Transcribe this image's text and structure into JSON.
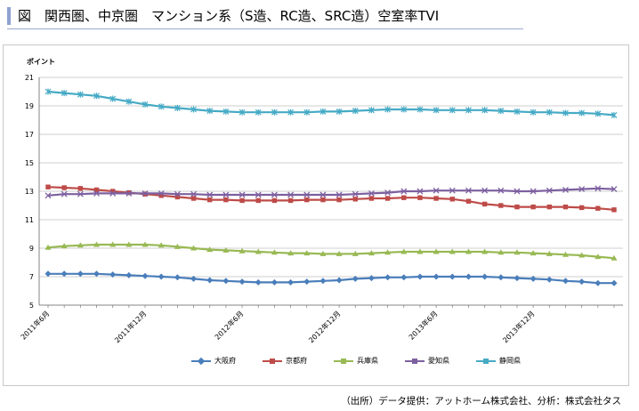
{
  "title": "図　関西圏、中京圏　マンション系（S造、RC造、SRC造）空室率TVI",
  "source": "（出所）データ提供：アットホーム株式会社、分析：株式会社タス",
  "chart_data": {
    "type": "line",
    "ylabel": "ポイント",
    "ylim": [
      5,
      21
    ],
    "yticks": [
      5,
      7,
      9,
      11,
      13,
      15,
      17,
      19,
      21
    ],
    "x": [
      "2011年6月",
      "2011年7月",
      "2011年8月",
      "2011年9月",
      "2011年10月",
      "2011年11月",
      "2011年12月",
      "2012年1月",
      "2012年2月",
      "2012年3月",
      "2012年4月",
      "2012年5月",
      "2012年6月",
      "2012年7月",
      "2012年8月",
      "2012年9月",
      "2012年10月",
      "2012年11月",
      "2012年12月",
      "2013年1月",
      "2013年2月",
      "2013年3月",
      "2013年4月",
      "2013年5月",
      "2013年6月",
      "2013年7月",
      "2013年8月",
      "2013年9月",
      "2013年10月",
      "2013年11月",
      "2013年12月",
      "2014年1月",
      "2014年2月",
      "2014年3月",
      "2014年4月",
      "2014年5月"
    ],
    "xtick_labels": [
      "2011年6月",
      "2011年12月",
      "2012年6月",
      "2012年12月",
      "2013年6月",
      "2013年12月"
    ],
    "series": [
      {
        "name": "大阪府",
        "color": "#4a7ebb",
        "marker": "diamond",
        "values": [
          7.2,
          7.2,
          7.2,
          7.2,
          7.15,
          7.1,
          7.05,
          7.0,
          6.95,
          6.85,
          6.75,
          6.7,
          6.65,
          6.6,
          6.6,
          6.6,
          6.65,
          6.7,
          6.75,
          6.85,
          6.9,
          6.95,
          6.95,
          7.0,
          7.0,
          7.0,
          7.0,
          7.0,
          6.95,
          6.9,
          6.85,
          6.8,
          6.7,
          6.65,
          6.55,
          6.55
        ]
      },
      {
        "name": "京都府",
        "color": "#be4b48",
        "marker": "square",
        "values": [
          13.3,
          13.25,
          13.2,
          13.1,
          13.0,
          12.9,
          12.8,
          12.7,
          12.6,
          12.5,
          12.4,
          12.4,
          12.35,
          12.35,
          12.35,
          12.35,
          12.4,
          12.4,
          12.4,
          12.45,
          12.5,
          12.5,
          12.55,
          12.55,
          12.5,
          12.45,
          12.3,
          12.1,
          12.0,
          11.9,
          11.9,
          11.9,
          11.9,
          11.85,
          11.8,
          11.7
        ]
      },
      {
        "name": "兵庫県",
        "color": "#98b954",
        "marker": "triangle",
        "values": [
          9.05,
          9.15,
          9.2,
          9.25,
          9.25,
          9.25,
          9.25,
          9.2,
          9.1,
          9.0,
          8.9,
          8.85,
          8.8,
          8.75,
          8.7,
          8.65,
          8.65,
          8.6,
          8.6,
          8.6,
          8.65,
          8.7,
          8.75,
          8.75,
          8.75,
          8.75,
          8.75,
          8.75,
          8.7,
          8.7,
          8.65,
          8.6,
          8.55,
          8.5,
          8.4,
          8.3
        ]
      },
      {
        "name": "愛知県",
        "color": "#7d60a0",
        "marker": "x",
        "values": [
          12.7,
          12.8,
          12.8,
          12.85,
          12.85,
          12.85,
          12.85,
          12.85,
          12.8,
          12.8,
          12.75,
          12.75,
          12.75,
          12.75,
          12.75,
          12.75,
          12.75,
          12.75,
          12.75,
          12.8,
          12.85,
          12.9,
          13.0,
          13.0,
          13.05,
          13.05,
          13.05,
          13.05,
          13.05,
          13.0,
          13.0,
          13.05,
          13.1,
          13.15,
          13.2,
          13.15
        ]
      },
      {
        "name": "静岡県",
        "color": "#46aac5",
        "marker": "star",
        "values": [
          20.0,
          19.9,
          19.8,
          19.7,
          19.5,
          19.3,
          19.1,
          18.95,
          18.85,
          18.75,
          18.65,
          18.6,
          18.55,
          18.55,
          18.55,
          18.55,
          18.55,
          18.6,
          18.6,
          18.65,
          18.7,
          18.75,
          18.75,
          18.75,
          18.7,
          18.7,
          18.7,
          18.7,
          18.65,
          18.6,
          18.55,
          18.55,
          18.5,
          18.5,
          18.45,
          18.35
        ]
      }
    ],
    "legend_position": "bottom",
    "grid": "horizontal"
  }
}
